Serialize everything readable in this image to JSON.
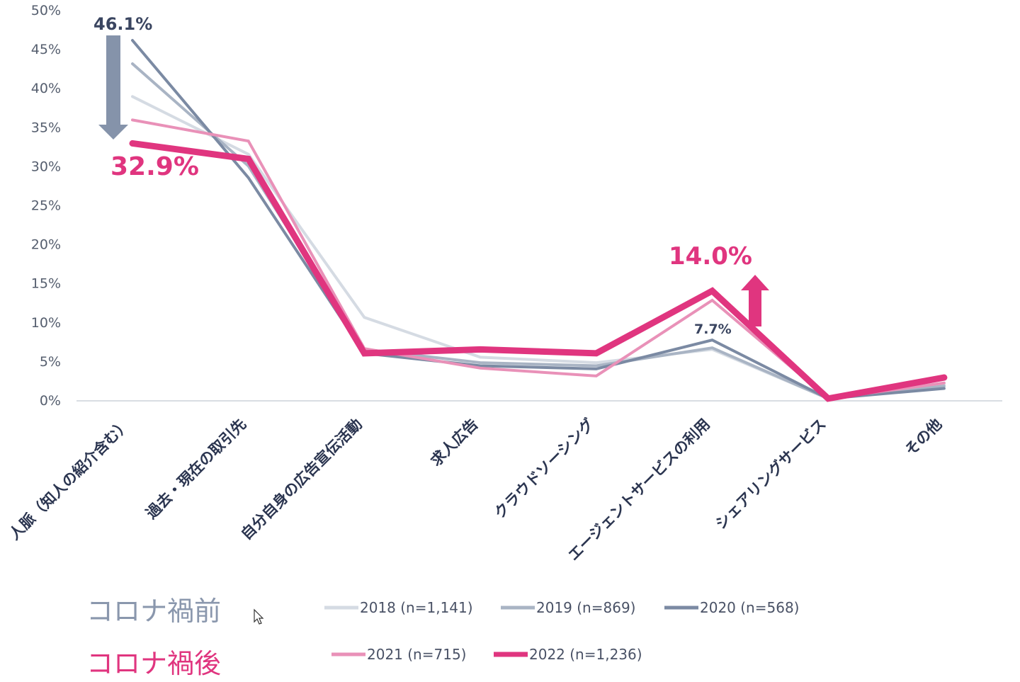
{
  "chart_data": {
    "type": "line",
    "title": "",
    "xlabel": "",
    "ylabel": "",
    "ylim": [
      0,
      50
    ],
    "yticks": [
      "0%",
      "5%",
      "10%",
      "15%",
      "20%",
      "25%",
      "30%",
      "35%",
      "40%",
      "45%",
      "50%"
    ],
    "categories": [
      "人脈（知人の紹介含む）",
      "過去・現在の取引先",
      "自分自身の広告宣伝活動",
      "求人広告",
      "クラウドソーシング",
      "エージェントサービスの利用",
      "シェアリングサービス",
      "その他"
    ],
    "series": [
      {
        "name": "2018 (n=1,141)",
        "color": "#d5dbe3",
        "group": "before",
        "values": [
          38.9,
          31.5,
          10.6,
          5.5,
          4.8,
          6.5,
          0.2,
          2.0
        ]
      },
      {
        "name": "2019 (n=869)",
        "color": "#a9b4c4",
        "group": "before",
        "values": [
          43.1,
          30.0,
          6.5,
          4.8,
          4.4,
          6.7,
          0.2,
          1.8
        ]
      },
      {
        "name": "2020 (n=568)",
        "color": "#7b8aa3",
        "group": "before",
        "values": [
          46.1,
          28.5,
          6.0,
          4.4,
          4.0,
          7.7,
          0.2,
          1.5
        ]
      },
      {
        "name": "2021 (n=715)",
        "color": "#e991b8",
        "group": "after",
        "values": [
          35.9,
          33.2,
          6.6,
          4.1,
          3.1,
          12.8,
          0.2,
          2.2
        ]
      },
      {
        "name": "2022 (n=1,236)",
        "color": "#e0357f",
        "group": "after",
        "values": [
          32.9,
          30.9,
          6.0,
          6.5,
          6.0,
          14.0,
          0.2,
          2.9
        ]
      }
    ],
    "annotations": [
      {
        "text": "46.1%",
        "color": "#3a4560"
      },
      {
        "text": "32.9%",
        "color": "#e0357f"
      },
      {
        "text": "14.0%",
        "color": "#e0357f"
      },
      {
        "text": "7.7%",
        "color": "#3a4560"
      }
    ],
    "legend": {
      "placement": "bottom",
      "groups": [
        {
          "label": "コロナ禍前",
          "color": "#8a97ad"
        },
        {
          "label": "コロナ禍後",
          "color": "#e0357f"
        }
      ]
    },
    "grid": false
  }
}
